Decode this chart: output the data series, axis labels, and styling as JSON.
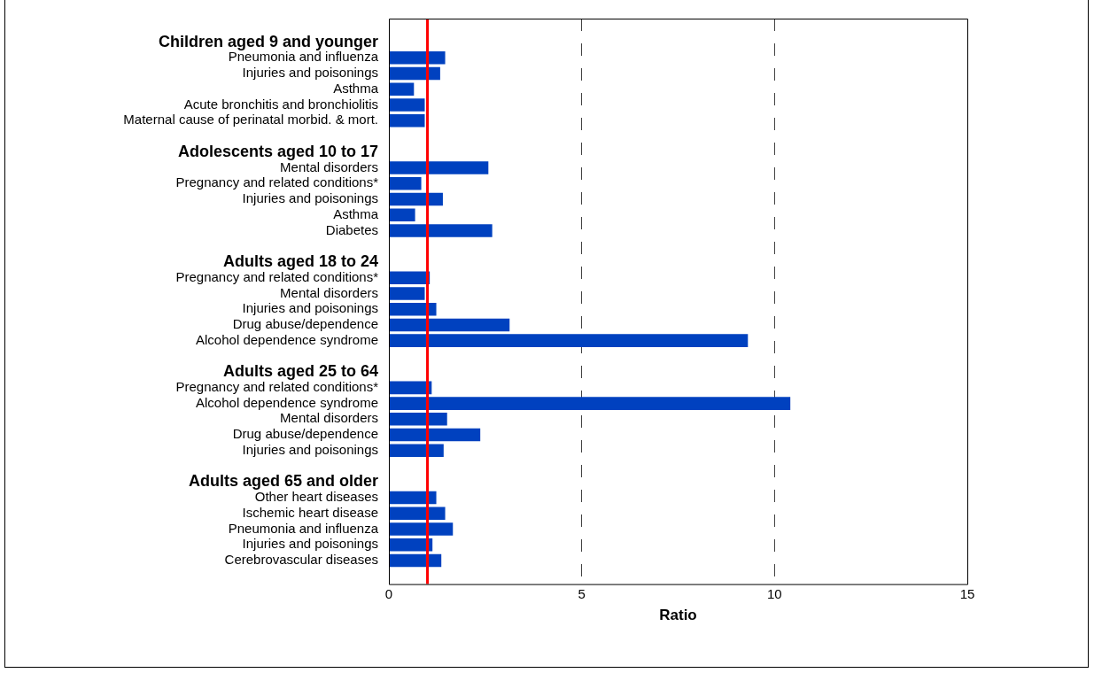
{
  "chart_data": {
    "type": "bar",
    "orientation": "horizontal",
    "xlabel": "Ratio",
    "categories": [
      null,
      "Children aged 9 and younger",
      "Pneumonia and influenza",
      "Injuries and poisonings",
      "Asthma",
      "Acute bronchitis and bronchiolitis",
      "Maternal cause of perinatal morbid. & mort.",
      null,
      "Adolescents aged 10 to 17",
      "Mental disorders",
      "Pregnancy and related conditions*",
      "Injuries and poisonings",
      "Asthma",
      "Diabetes",
      null,
      "Adults aged 18 to 24",
      "Pregnancy and related conditions*",
      "Mental disorders",
      "Injuries and poisonings",
      "Drug abuse/dependence",
      "Alcohol dependence syndrome",
      null,
      "Adults aged 25 to 64",
      "Pregnancy and related conditions*",
      "Alcohol dependence syndrome",
      "Mental disorders",
      "Drug abuse/dependence",
      "Injuries and poisonings",
      null,
      "Adults aged 65 and older",
      "Other heart diseases",
      "Ischemic heart disease",
      "Pneumonia and influenza",
      "Injuries and poisonings",
      "Cerebrovascular diseases",
      null
    ],
    "values": [
      null,
      null,
      1.46,
      1.33,
      0.65,
      0.93,
      0.93,
      null,
      null,
      2.58,
      0.84,
      1.4,
      0.68,
      2.68,
      null,
      null,
      1.06,
      0.93,
      1.23,
      3.13,
      9.31,
      null,
      null,
      1.11,
      10.41,
      1.51,
      2.37,
      1.42,
      null,
      null,
      1.23,
      1.46,
      1.66,
      1.13,
      1.36,
      null
    ],
    "color": "#0041bf",
    "xlim": [
      0,
      15
    ],
    "xticks": [
      0,
      5,
      10,
      15
    ],
    "grid": "x",
    "legend": false,
    "ref_lines": [
      {
        "axis": "x",
        "value": 1,
        "color": "#ff0000"
      }
    ]
  }
}
